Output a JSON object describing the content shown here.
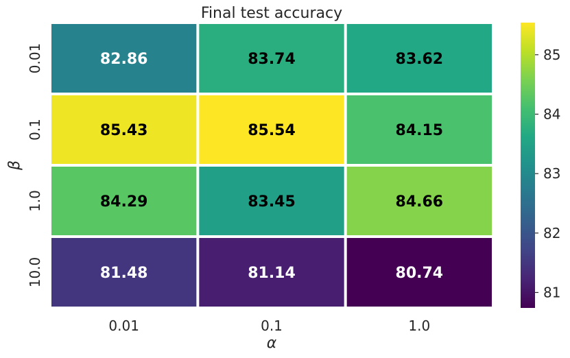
{
  "chart_data": {
    "type": "heatmap",
    "title": "Final test accuracy",
    "xlabel": "α",
    "ylabel": "β",
    "x_categories": [
      "0.01",
      "0.1",
      "1.0"
    ],
    "y_categories": [
      "0.01",
      "0.1",
      "1.0",
      "10.0"
    ],
    "values": [
      [
        82.86,
        83.74,
        83.62
      ],
      [
        85.43,
        85.54,
        84.15
      ],
      [
        84.29,
        83.45,
        84.66
      ],
      [
        81.48,
        81.14,
        80.74
      ]
    ],
    "value_labels": [
      [
        "82.86",
        "83.74",
        "83.62"
      ],
      [
        "85.43",
        "85.54",
        "84.15"
      ],
      [
        "84.29",
        "83.45",
        "84.66"
      ],
      [
        "81.48",
        "81.14",
        "80.74"
      ]
    ],
    "colormap": "viridis",
    "vmin": 80.74,
    "vmax": 85.54,
    "colorbar_ticks": [
      "81",
      "82",
      "83",
      "84",
      "85"
    ],
    "colorbar_tick_values": [
      81,
      82,
      83,
      84,
      85
    ],
    "annotation_colors": {
      "light_bg": "#000000",
      "dark_bg": "#ffffff"
    },
    "grid_line_color": "#ffffff"
  }
}
